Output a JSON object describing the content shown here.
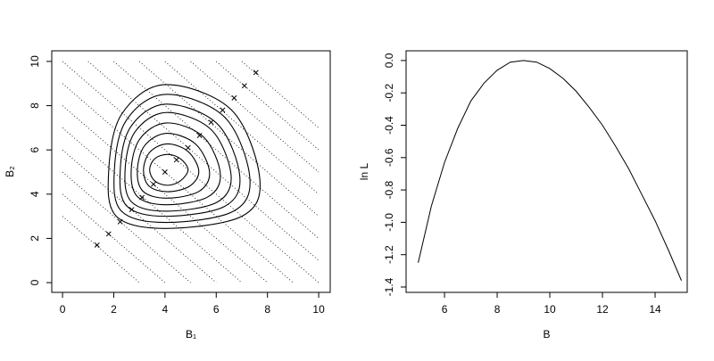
{
  "chart_data": [
    {
      "type": "contour",
      "xlabel": "B₁",
      "ylabel": "B₂",
      "xlim": [
        -0.42,
        10.45
      ],
      "ylim": [
        -0.44,
        10.48
      ],
      "xticks": [
        0,
        2,
        4,
        6,
        8,
        10
      ],
      "yticks": [
        0,
        2,
        4,
        6,
        8,
        10
      ],
      "contours": [
        {
          "x": [
            4.9,
            4.6,
            4.1,
            3.6,
            3.4,
            3.6,
            4.1,
            4.6
          ],
          "y": [
            5.1,
            5.6,
            5.8,
            5.6,
            5.1,
            4.6,
            4.4,
            4.6
          ]
        },
        {
          "x": [
            5.32,
            4.9,
            4.09,
            3.41,
            3.16,
            3.38,
            4.09,
            4.96
          ],
          "y": [
            5.04,
            5.93,
            6.27,
            5.9,
            5.09,
            4.36,
            4.11,
            4.36
          ]
        },
        {
          "x": [
            5.74,
            5.2,
            4.07,
            3.21,
            2.92,
            3.15,
            4.07,
            5.32
          ],
          "y": [
            4.98,
            6.26,
            6.75,
            6.2,
            5.07,
            4.12,
            3.82,
            4.12
          ]
        },
        {
          "x": [
            6.16,
            5.5,
            4.06,
            3.02,
            2.68,
            2.93,
            4.06,
            5.68
          ],
          "y": [
            4.92,
            6.59,
            7.22,
            6.5,
            5.06,
            3.88,
            3.52,
            3.88
          ]
        },
        {
          "x": [
            6.58,
            5.8,
            4.04,
            2.82,
            2.44,
            2.7,
            4.04,
            6.04
          ],
          "y": [
            4.86,
            6.92,
            7.69,
            6.8,
            5.04,
            3.64,
            3.23,
            3.64
          ]
        },
        {
          "x": [
            6.92,
            6.04,
            4.03,
            2.66,
            2.25,
            2.52,
            4.03,
            6.33
          ],
          "y": [
            4.81,
            7.18,
            8.07,
            7.04,
            5.03,
            3.45,
            3.0,
            3.45
          ]
        },
        {
          "x": [
            7.31,
            6.32,
            4.01,
            2.48,
            2.02,
            2.31,
            4.01,
            6.66
          ],
          "y": [
            4.76,
            7.49,
            8.51,
            7.32,
            5.01,
            3.22,
            2.72,
            3.22
          ]
        },
        {
          "x": [
            7.7,
            6.6,
            4.0,
            2.3,
            1.8,
            2.1,
            4.0,
            7.0
          ],
          "y": [
            4.7,
            7.8,
            8.95,
            7.6,
            5.0,
            3.0,
            2.45,
            3.0
          ]
        }
      ],
      "diagonals": [
        3,
        4,
        5,
        6,
        7,
        8,
        9,
        10,
        11,
        12,
        13,
        14,
        15,
        16,
        17
      ],
      "points": {
        "x": [
          1.35,
          1.8,
          2.25,
          2.7,
          3.1,
          3.55,
          4.0,
          4.45,
          4.9,
          5.35,
          5.8,
          6.25,
          6.7,
          7.1,
          7.55
        ],
        "y": [
          1.7,
          2.2,
          2.75,
          3.3,
          3.85,
          4.45,
          5.0,
          5.55,
          6.1,
          6.65,
          7.25,
          7.8,
          8.35,
          8.9,
          9.5
        ]
      }
    },
    {
      "type": "line",
      "xlabel": "B",
      "ylabel": "ln L",
      "xlim": [
        4.54,
        15.22
      ],
      "ylim": [
        -1.433,
        0.06
      ],
      "xticks": [
        6,
        8,
        10,
        12,
        14
      ],
      "yticks": [
        {
          "value": 0,
          "label": "0.0"
        },
        -0.2,
        -0.4,
        -0.6,
        -0.8,
        {
          "value": -1,
          "label": "-1.0"
        },
        -1.2,
        -1.4
      ],
      "x": [
        5,
        5.5,
        6,
        6.5,
        7,
        7.5,
        8,
        8.5,
        9,
        9.5,
        10,
        10.5,
        11,
        11.5,
        12,
        12.5,
        13,
        13.5,
        14,
        14.5,
        15
      ],
      "values": [
        -1.25,
        -0.9,
        -0.63,
        -0.42,
        -0.25,
        -0.14,
        -0.06,
        -0.01,
        0,
        -0.01,
        -0.05,
        -0.11,
        -0.19,
        -0.29,
        -0.4,
        -0.53,
        -0.67,
        -0.83,
        -0.99,
        -1.17,
        -1.36
      ],
      "color": "#000000"
    }
  ]
}
